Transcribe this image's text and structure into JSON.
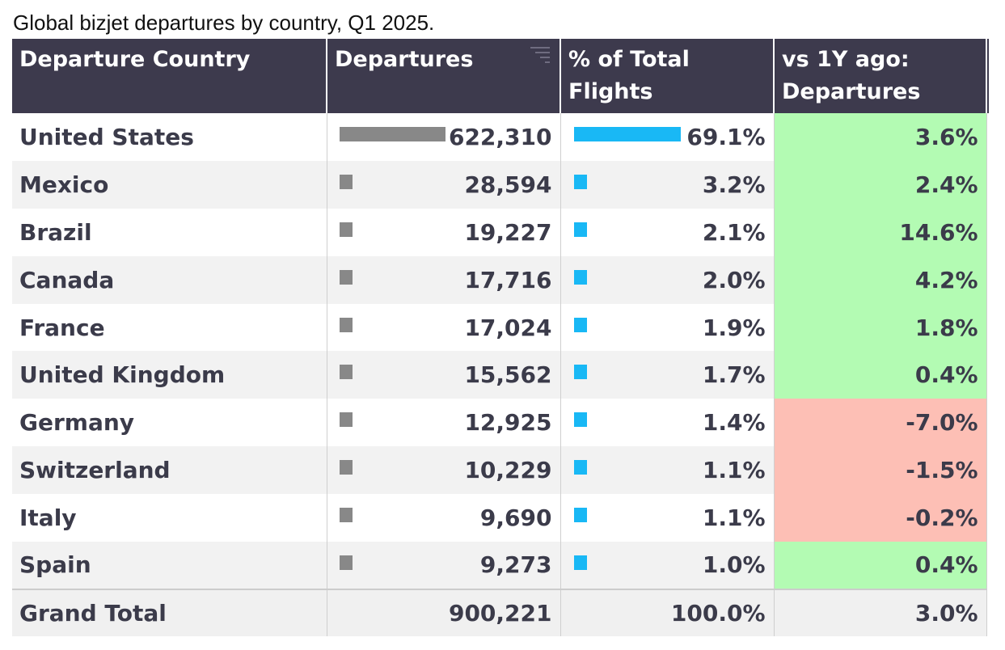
{
  "caption": "Global bizjet departures by country, Q1 2025.",
  "colors": {
    "header_bg": "#3d3a4d",
    "departures_bar": "#888888",
    "share_bar": "#19b8f5",
    "positive_change": "#b3fbb3",
    "negative_change": "#fdbfb5"
  },
  "icons": {
    "sort": "sort-descending-icon"
  },
  "chart_data": {
    "type": "table",
    "columns": [
      "Departure Country",
      "Departures",
      "% of Total Flights",
      "vs 1Y ago: Departures"
    ],
    "header": {
      "country": "Departure Country",
      "departures": "Departures",
      "pct_line1": "% of Total",
      "pct_line2": "Flights",
      "yoy_line1": "vs 1Y ago:",
      "yoy_line2": "Departures"
    },
    "rows": [
      {
        "country": "United States",
        "departures": 622310,
        "departures_label": "622,310",
        "pct": 69.1,
        "pct_label": "69.1%",
        "yoy": 3.6,
        "yoy_label": "3.6%"
      },
      {
        "country": "Mexico",
        "departures": 28594,
        "departures_label": "28,594",
        "pct": 3.2,
        "pct_label": "3.2%",
        "yoy": 2.4,
        "yoy_label": "2.4%"
      },
      {
        "country": "Brazil",
        "departures": 19227,
        "departures_label": "19,227",
        "pct": 2.1,
        "pct_label": "2.1%",
        "yoy": 14.6,
        "yoy_label": "14.6%"
      },
      {
        "country": "Canada",
        "departures": 17716,
        "departures_label": "17,716",
        "pct": 2.0,
        "pct_label": "2.0%",
        "yoy": 4.2,
        "yoy_label": "4.2%"
      },
      {
        "country": "France",
        "departures": 17024,
        "departures_label": "17,024",
        "pct": 1.9,
        "pct_label": "1.9%",
        "yoy": 1.8,
        "yoy_label": "1.8%"
      },
      {
        "country": "United Kingdom",
        "departures": 15562,
        "departures_label": "15,562",
        "pct": 1.7,
        "pct_label": "1.7%",
        "yoy": 0.4,
        "yoy_label": "0.4%"
      },
      {
        "country": "Germany",
        "departures": 12925,
        "departures_label": "12,925",
        "pct": 1.4,
        "pct_label": "1.4%",
        "yoy": -7.0,
        "yoy_label": "-7.0%"
      },
      {
        "country": "Switzerland",
        "departures": 10229,
        "departures_label": "10,229",
        "pct": 1.1,
        "pct_label": "1.1%",
        "yoy": -1.5,
        "yoy_label": "-1.5%"
      },
      {
        "country": "Italy",
        "departures": 9690,
        "departures_label": "9,690",
        "pct": 1.1,
        "pct_label": "1.1%",
        "yoy": -0.2,
        "yoy_label": "-0.2%"
      },
      {
        "country": "Spain",
        "departures": 9273,
        "departures_label": "9,273",
        "pct": 1.0,
        "pct_label": "1.0%",
        "yoy": 0.4,
        "yoy_label": "0.4%"
      }
    ],
    "total": {
      "label": "Grand Total",
      "departures": 900221,
      "departures_label": "900,221",
      "pct": 100.0,
      "pct_label": "100.0%",
      "yoy": 3.0,
      "yoy_label": "3.0%"
    }
  }
}
